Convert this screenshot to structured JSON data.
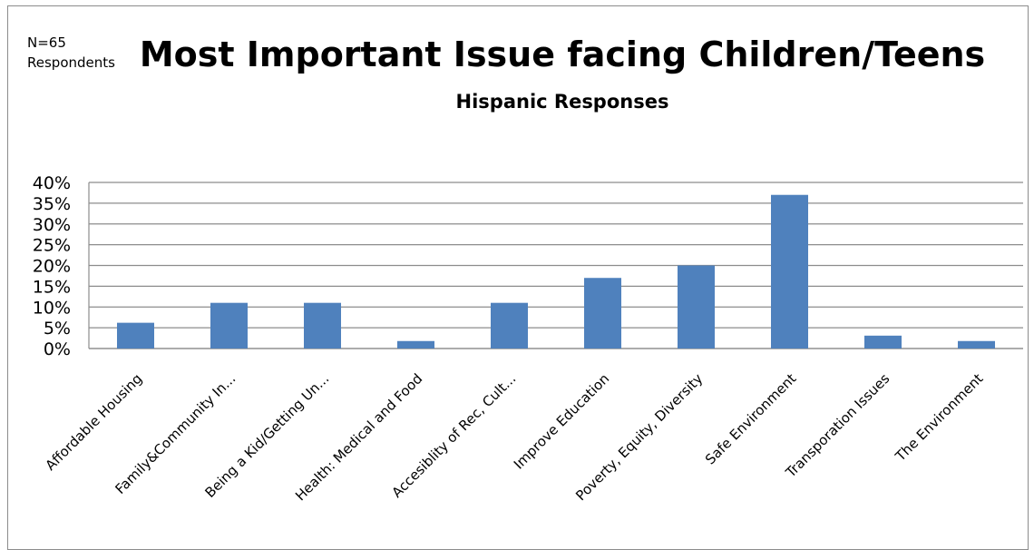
{
  "note": {
    "n": "N=65",
    "respondents": "Respondents"
  },
  "chart_data": {
    "type": "bar",
    "title": "Most Important Issue facing Children/Teens",
    "subtitle": "Hispanic Responses",
    "xlabel": "",
    "ylabel": "",
    "ylim": [
      0,
      40
    ],
    "yticks": [
      "0%",
      "5%",
      "10%",
      "15%",
      "20%",
      "25%",
      "30%",
      "35%",
      "40%"
    ],
    "grid": true,
    "categories": [
      "Affordable Housing",
      "Family&Community In...",
      "Being a Kid/Getting Un...",
      "Health: Medical and Food",
      "Accesiblity of Rec, Cult...",
      "Improve Education",
      "Poverty, Equity, Diversity",
      "Safe Environment",
      "Transporation Issues",
      "The Environment"
    ],
    "values": [
      6.2,
      11,
      11,
      1.8,
      11,
      17,
      20,
      37,
      3.1,
      1.8
    ],
    "unit": "%",
    "bar_color": "#4f81bd"
  }
}
